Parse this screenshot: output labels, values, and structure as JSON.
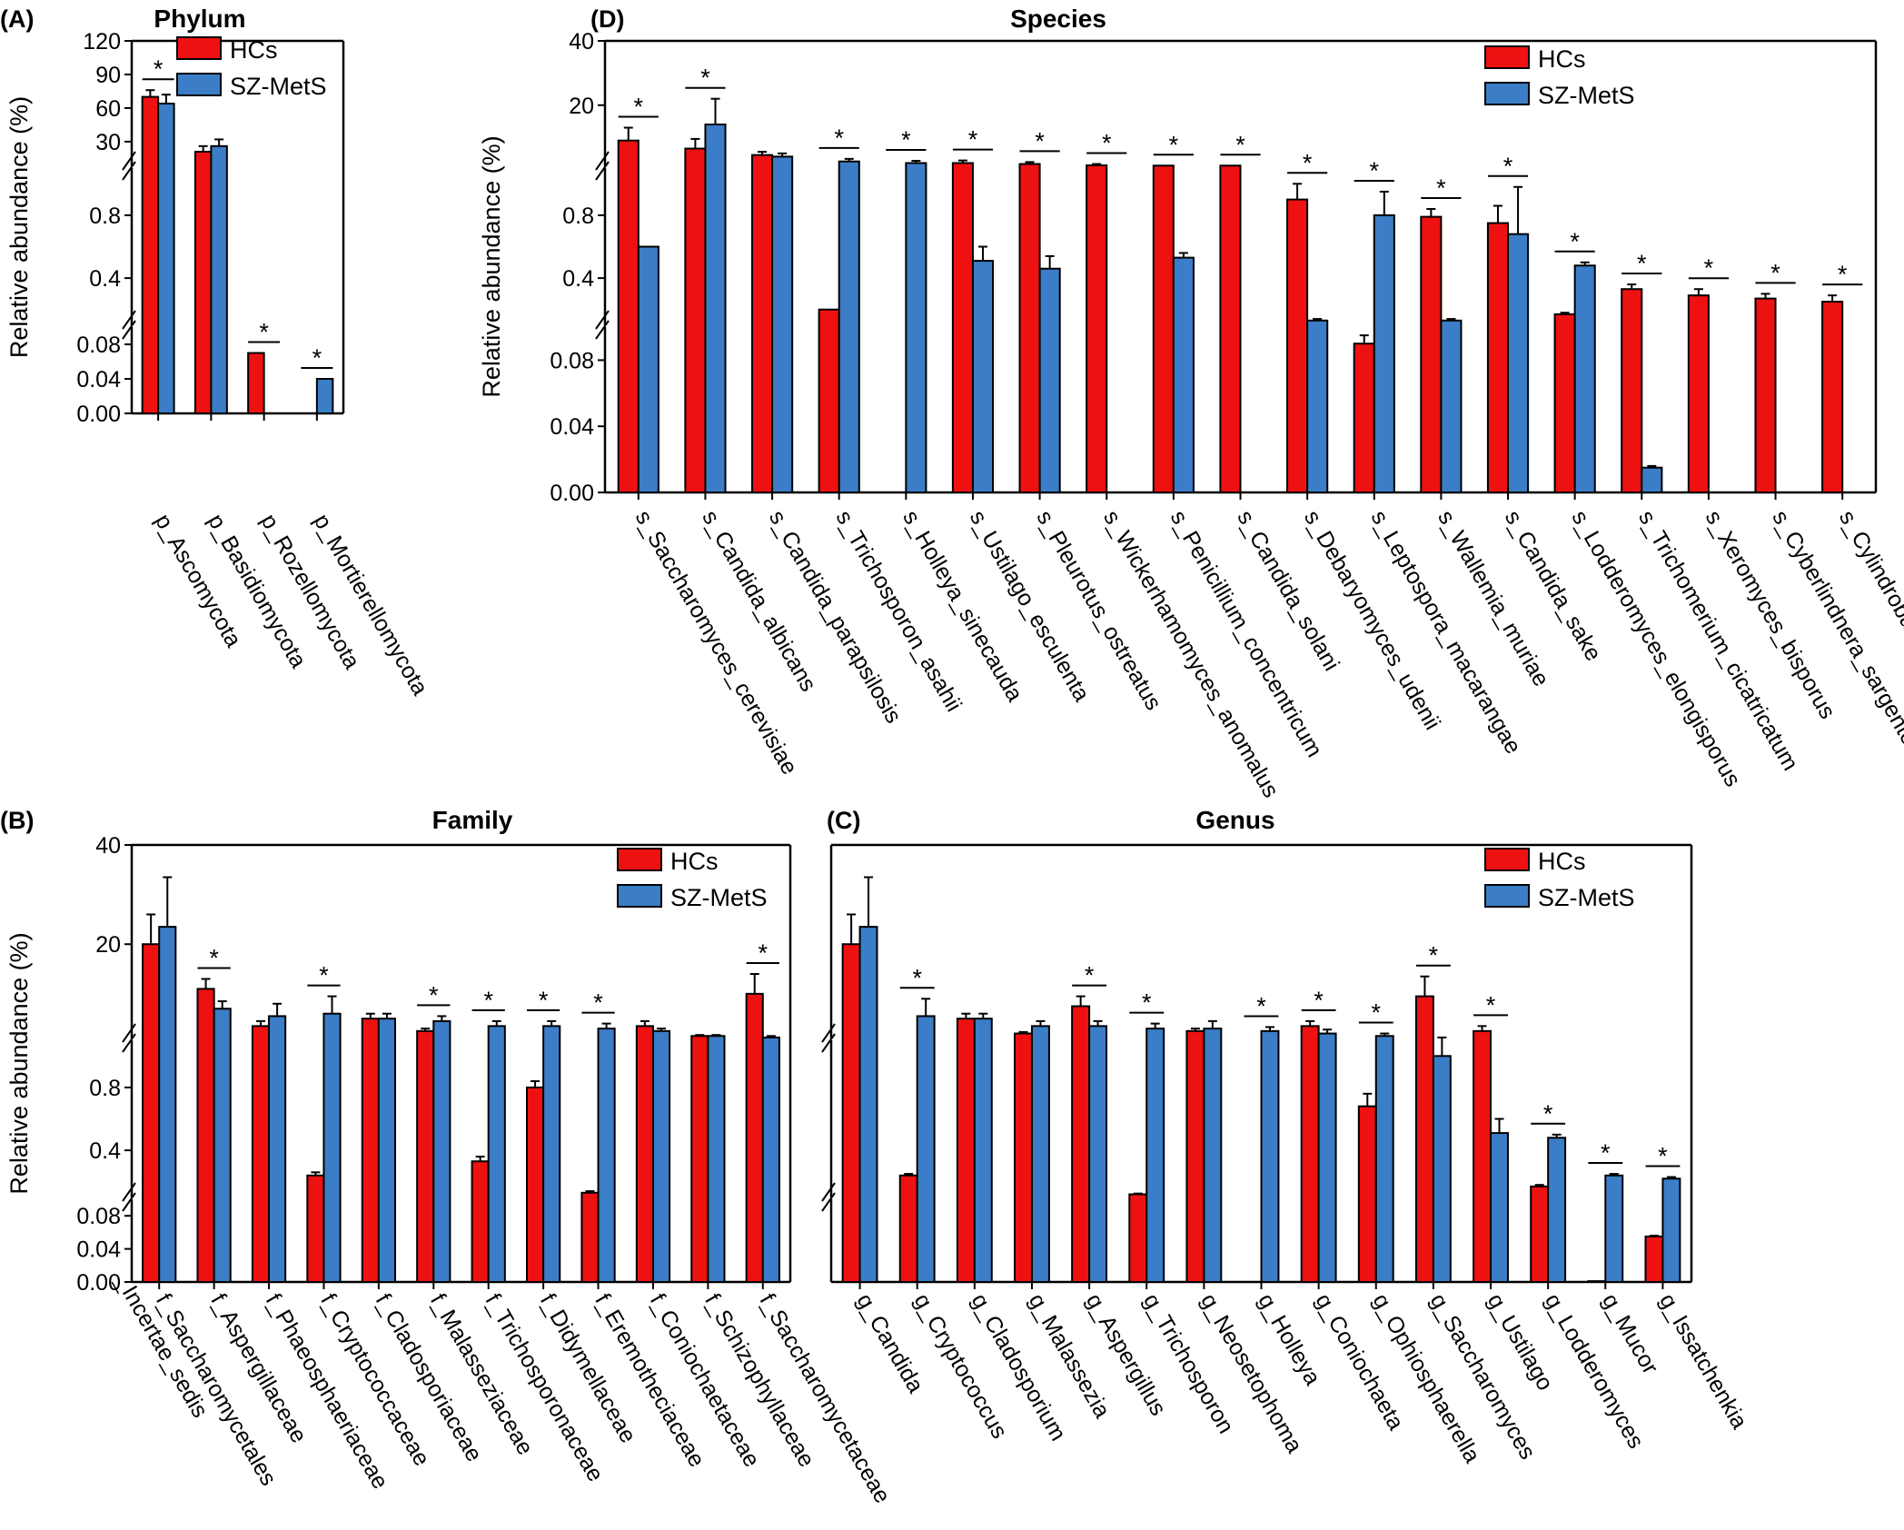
{
  "figure": {
    "colors": {
      "hcs": "#ee1111",
      "szmets": "#3b7dc6",
      "axis": "#000000"
    },
    "legend": [
      "HCs",
      "SZ-MetS"
    ],
    "ylabel": "Relative abundance (%)"
  },
  "chart_data": [
    {
      "id": "A",
      "panel": "(A)",
      "title": "Phylum",
      "type": "bar",
      "ylabel": "Relative abundance (%)",
      "segments": [
        {
          "range": [
            0,
            0.1
          ],
          "ticks": [
            "0.00",
            "0.04",
            "0.08"
          ]
        },
        {
          "range": [
            0.1,
            1.1
          ],
          "ticks": [
            "0.4",
            "0.8"
          ]
        },
        {
          "range": [
            8,
            120
          ],
          "ticks": [
            "30",
            "60",
            "90",
            "120"
          ]
        }
      ],
      "categories": [
        "p_Ascomycota",
        "p_Basidiomycota",
        "p_Rozellomycota",
        "p_Mortierellomycota"
      ],
      "series": [
        {
          "name": "HCs",
          "values": [
            70,
            21,
            0.07,
            0
          ],
          "errors": [
            6,
            5,
            0,
            0
          ]
        },
        {
          "name": "SZ-MetS",
          "values": [
            64,
            26,
            0,
            0.04
          ],
          "errors": [
            8,
            6,
            0,
            0
          ]
        }
      ],
      "significant": [
        true,
        false,
        true,
        true
      ]
    },
    {
      "id": "D",
      "panel": "(D)",
      "title": "Species",
      "type": "bar",
      "ylabel": "Relative abundance (%)",
      "segments": [
        {
          "range": [
            0,
            0.1
          ],
          "ticks": [
            "0.00",
            "0.04",
            "0.08"
          ]
        },
        {
          "range": [
            0.1,
            1.1
          ],
          "ticks": [
            "0.4",
            "0.8"
          ]
        },
        {
          "range": [
            1,
            40
          ],
          "ticks": [
            "20",
            "40"
          ]
        }
      ],
      "categories": [
        "s_Saccharomyces_cerevisiae",
        "s_Candida_albicans",
        "s_Candida_parapsilosis",
        "s_Trichosporon_asahii",
        "s_Holleya_sinecauda",
        "s_Ustilago_esculenta",
        "s_Pleurotus_ostreatus",
        "s_Wickerhamomyces_anomalus",
        "s_Penicillium_concentricum",
        "s_Candida_solani",
        "s_Debaryomyces_udenii",
        "s_Leptospora_macarangae",
        "s_Wallemia_muriae",
        "s_Candida_sake",
        "s_Lodderomyces_elongisporus",
        "s_Trichomerium_cicatricatum",
        "s_Xeromyces_bisporus",
        "s_Cyberlindnera_sargentensis",
        "s_Cylindrobasidium_evolvens"
      ],
      "series": [
        {
          "name": "HCs",
          "values": [
            9,
            6.5,
            4.5,
            0.2,
            0,
            2.0,
            1.7,
            1.3,
            1.2,
            1.2,
            0.9,
            0.09,
            0.79,
            0.75,
            0.17,
            0.33,
            0.29,
            0.27,
            0.25
          ],
          "errors": [
            4,
            3,
            1,
            0,
            0,
            0.8,
            0.6,
            0.4,
            0,
            0,
            0.1,
            0.005,
            0.05,
            0.11,
            0.01,
            0.03,
            0.04,
            0.03,
            0.04
          ]
        },
        {
          "name": "SZ-MetS",
          "values": [
            0.6,
            14,
            4,
            2.5,
            2.0,
            0.51,
            0.46,
            0,
            0.53,
            0,
            0.13,
            0.8,
            0.13,
            0.68,
            0.48,
            0.015,
            0,
            0,
            0
          ],
          "errors": [
            0,
            8,
            1,
            0.8,
            0.7,
            0.09,
            0.08,
            0,
            0.03,
            0,
            0.01,
            0.15,
            0.01,
            0.3,
            0.02,
            0.001,
            0,
            0,
            0
          ]
        }
      ],
      "significant": [
        true,
        true,
        false,
        true,
        true,
        true,
        true,
        true,
        true,
        true,
        true,
        true,
        true,
        true,
        true,
        true,
        true,
        true,
        true
      ]
    },
    {
      "id": "B",
      "panel": "(B)",
      "title": "Family",
      "type": "bar",
      "ylabel": "Relative abundance (%)",
      "segments": [
        {
          "range": [
            0,
            0.1
          ],
          "ticks": [
            "0.00",
            "0.04",
            "0.08"
          ]
        },
        {
          "range": [
            0.1,
            1.1
          ],
          "ticks": [
            "0.4",
            "0.8"
          ]
        },
        {
          "range": [
            1,
            40
          ],
          "ticks": [
            "20",
            "40"
          ]
        }
      ],
      "categories": [
        "f_Saccharomycetales _Incertae_sedis",
        "f_Aspergillaceae",
        "f_Phaeosphaeriaceae",
        "f_Cryptococcaceae",
        "f_Cladosporiaceae",
        "f_Malasseziaceae",
        "f_Trichosporonaceae",
        "f_Didymellaceae",
        "f_Eremotheciaceae",
        "f_Coniochaetaceae",
        "f_Schizophyllaceae",
        "f_Saccharomycetaceae"
      ],
      "series": [
        {
          "name": "HCs",
          "values": [
            20,
            11,
            3.5,
            0.24,
            5,
            2.5,
            0.33,
            0.8,
            0.13,
            3.5,
            1.5,
            10
          ],
          "errors": [
            6,
            2,
            1,
            0.02,
            1,
            0.5,
            0.03,
            0.04,
            0.01,
            1,
            0.2,
            4
          ]
        },
        {
          "name": "SZ-MetS",
          "values": [
            23.5,
            7,
            5.5,
            6,
            5,
            4.5,
            3.5,
            3.5,
            3,
            2.5,
            1.5,
            1.2
          ],
          "errors": [
            10,
            1.5,
            2.5,
            3.5,
            1,
            1,
            1,
            1,
            1,
            0.5,
            0.2,
            0.3
          ]
        }
      ],
      "significant": [
        false,
        true,
        false,
        true,
        false,
        true,
        true,
        true,
        true,
        false,
        false,
        true
      ]
    },
    {
      "id": "C",
      "panel": "(C)",
      "title": "Genus",
      "type": "bar",
      "ylabel": "",
      "segments": [
        {
          "range": [
            0,
            0.1
          ],
          "ticks": []
        },
        {
          "range": [
            0.1,
            1.1
          ],
          "ticks": []
        },
        {
          "range": [
            1,
            40
          ],
          "ticks": []
        }
      ],
      "categories": [
        "g_Candida",
        "g_Cryptococcus",
        "g_Cladosporium",
        "g_Malassezia",
        "g_Aspergillus",
        "g_Trichosporon",
        "g_Neosetophoma",
        "g_Holleya",
        "g_Coniochaeta",
        "g_Ophiosphaerella",
        "g_Saccharomyces",
        "g_Ustilago",
        "g_Lodderomyces",
        "g_Mucor",
        "g_Issatchenkia"
      ],
      "series": [
        {
          "name": "HCs",
          "values": [
            20,
            0.24,
            5,
            2,
            7.5,
            0.12,
            2.5,
            0,
            3.5,
            0.68,
            9.5,
            2.5,
            0.17,
            0.001,
            0.055
          ],
          "errors": [
            6,
            0.01,
            1,
            0.3,
            2,
            0.005,
            0.5,
            0,
            1,
            0.08,
            4,
            1,
            0.01,
            0,
            0.001
          ]
        },
        {
          "name": "SZ-MetS",
          "values": [
            23.5,
            5.5,
            5,
            3.5,
            3.5,
            3,
            3,
            2.5,
            2,
            1.5,
            1,
            0.51,
            0.48,
            0.24,
            0.22
          ],
          "errors": [
            10,
            3.5,
            1,
            1,
            1,
            1,
            1.5,
            0.8,
            0.8,
            0.5,
            0.2,
            0.09,
            0.02,
            0.01,
            0.01
          ]
        }
      ],
      "significant": [
        false,
        true,
        false,
        false,
        true,
        true,
        false,
        true,
        true,
        true,
        true,
        true,
        true,
        true,
        true
      ]
    }
  ]
}
